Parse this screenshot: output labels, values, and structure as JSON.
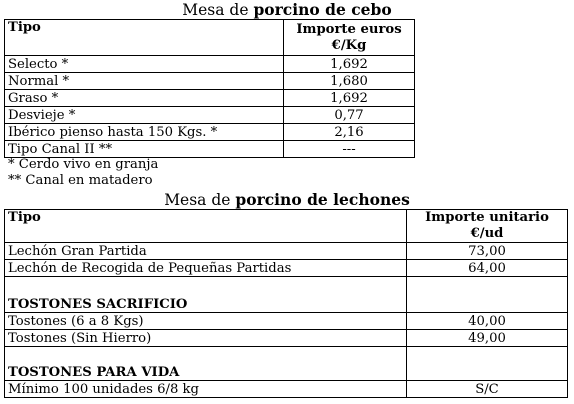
{
  "cebo": {
    "caption_prefix": "Mesa de ",
    "caption_bold": "porcino de cebo",
    "header_tipo": "Tipo",
    "header_importe_1": "Importe euros",
    "header_importe_2": "€/Kg",
    "rows": [
      {
        "tipo": "Selecto *",
        "valor": "1,692"
      },
      {
        "tipo": "Normal *",
        "valor": "1,680"
      },
      {
        "tipo": "Graso *",
        "valor": "1,692"
      },
      {
        "tipo": "Desvieje *",
        "valor": "0,77"
      },
      {
        "tipo": "Ibérico pienso hasta 150 Kgs. *",
        "valor": "2,16"
      },
      {
        "tipo": "Tipo Canal II **",
        "valor": "---"
      }
    ],
    "notes": [
      "* Cerdo vivo en granja",
      "** Canal en matadero"
    ]
  },
  "lechones": {
    "caption_prefix": "Mesa de ",
    "caption_bold": "porcino de lechones",
    "header_tipo": "Tipo",
    "header_importe_1": "Importe unitario",
    "header_importe_2": "€/ud",
    "rows_lechon": [
      {
        "tipo": "Lechón Gran Partida",
        "valor": "73,00"
      },
      {
        "tipo": "Lechón de Recogida de Pequeñas Partidas",
        "valor": "64,00"
      }
    ],
    "section_sacrificio": "TOSTONES SACRIFICIO",
    "rows_sacrificio": [
      {
        "tipo": "Tostones (6 a 8 Kgs)",
        "valor": "40,00"
      },
      {
        "tipo": "Tostones  (Sin Hierro)",
        "valor": "49,00"
      }
    ],
    "section_vida": "TOSTONES PARA VIDA",
    "rows_vida": [
      {
        "tipo": "Mínimo 100 unidades 6/8 kg",
        "valor": "S/C"
      }
    ]
  }
}
